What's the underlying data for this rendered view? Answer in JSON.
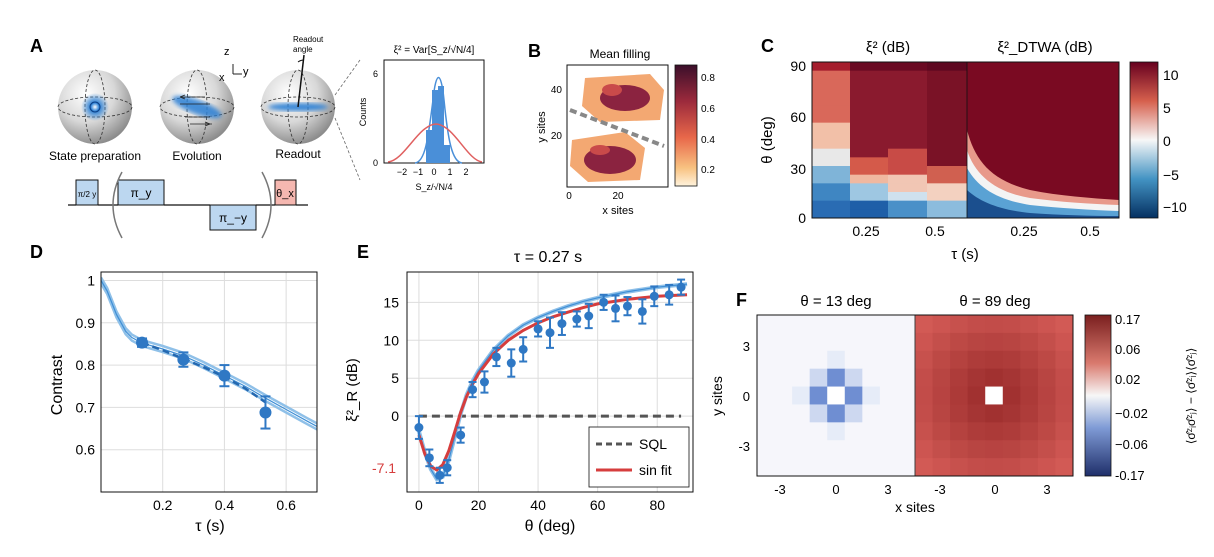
{
  "panels": {
    "A": {
      "letter": "A",
      "sphere_labels": [
        "State preparation",
        "Evolution",
        "Readout"
      ],
      "axis_z": "z",
      "axis_x": "x",
      "axis_y": "y",
      "readout_angle_label": [
        "Readout",
        "angle"
      ],
      "hist_title": "ξ² = Var[S_z/√N/4]",
      "hist_ylabel": "Counts",
      "hist_xlabel": "S_z/√N/4",
      "hist_xticks": [
        "−2",
        "−1",
        "0",
        "1",
        "2"
      ],
      "hist_yticks": [
        "0",
        "6"
      ],
      "pulses": [
        "π/2 y",
        "π_y",
        "π_−y",
        "θ_x"
      ]
    },
    "B": {
      "letter": "B",
      "title": "Mean filling",
      "xlabel": "x sites",
      "ylabel": "y sites",
      "xticks": [
        "0",
        "20"
      ],
      "yticks": [
        "20",
        "40"
      ],
      "cbar_ticks": [
        "0.8",
        "0.6",
        "0.4",
        "0.2"
      ]
    },
    "C": {
      "letter": "C",
      "title_left": "ξ² (dB)",
      "title_right": "ξ²_DTWA (dB)",
      "ylabel": "θ (deg)",
      "xlabel": "τ (s)",
      "yticks": [
        "90",
        "60",
        "30",
        "0"
      ],
      "xticks": [
        "0.25",
        "0.5",
        "0.25",
        "0.5"
      ],
      "cbar_ticks": [
        "10",
        "5",
        "0",
        "−5",
        "−10"
      ]
    },
    "F": {
      "letter": "F",
      "title_left": "θ = 13 deg",
      "title_right": "θ = 89 deg",
      "xlabel": "x sites",
      "ylabel": "y sites",
      "xticks": [
        "-3",
        "0",
        "3",
        "-3",
        "0",
        "3"
      ],
      "yticks": [
        "3",
        "0",
        "-3"
      ],
      "cbar_ticks": [
        "0.17",
        "0.06",
        "0.02",
        "−0.02",
        "−0.06",
        "-0.17"
      ],
      "cbar_label": "⟨σ̂ᶻᵢσ̂ᶻⱼ⟩ − ⟨σ̂ᶻᵢ⟩⟨σ̂ᶻⱼ⟩"
    }
  },
  "chart_data": [
    {
      "id": "D",
      "letter": "D",
      "type": "line",
      "title": "",
      "xlabel": "τ (s)",
      "ylabel": "Contrast",
      "xlim": [
        0,
        0.7
      ],
      "ylim": [
        0.5,
        1.02
      ],
      "xticks": [
        "0.2",
        "0.4",
        "0.6"
      ],
      "yticks": [
        "1",
        "0.9",
        "0.8",
        "0.7",
        "0.6"
      ],
      "series": [
        {
          "name": "",
          "style": "points",
          "x": [
            0.133,
            0.267,
            0.4,
            0.533
          ],
          "y": [
            0.853,
            0.813,
            0.775,
            0.688
          ],
          "yerr": [
            0.01,
            0.017,
            0.025,
            0.038
          ]
        },
        {
          "name": "",
          "style": "dashed-fit",
          "x": [
            0.133,
            0.2,
            0.267,
            0.333,
            0.4,
            0.467,
            0.533
          ],
          "y": [
            0.853,
            0.835,
            0.815,
            0.795,
            0.772,
            0.745,
            0.712
          ]
        },
        {
          "name": "",
          "style": "theory-band",
          "x": [
            0.0,
            0.02,
            0.05,
            0.08,
            0.1,
            0.133,
            0.2,
            0.267,
            0.333,
            0.4,
            0.467,
            0.533,
            0.6,
            0.667,
            0.7
          ],
          "y": [
            1.0,
            0.975,
            0.92,
            0.88,
            0.865,
            0.852,
            0.838,
            0.822,
            0.8,
            0.775,
            0.75,
            0.722,
            0.695,
            0.668,
            0.655
          ]
        }
      ]
    },
    {
      "id": "E",
      "letter": "E",
      "type": "scatter",
      "title": "τ = 0.27 s",
      "xlabel": "θ (deg)",
      "ylabel": "ξ²_R (dB)",
      "xlim": [
        -4,
        92
      ],
      "ylim": [
        -10,
        19
      ],
      "xticks": [
        "0",
        "20",
        "40",
        "60",
        "80"
      ],
      "yticks": [
        "15",
        "10",
        "5",
        "0"
      ],
      "min_label": "-7.1",
      "legend": [
        "SQL",
        "sin fit"
      ],
      "series": [
        {
          "name": "data",
          "x": [
            0,
            3.5,
            7,
            9.5,
            14,
            18,
            22,
            26,
            31,
            35,
            40,
            44,
            48,
            53,
            57,
            62,
            66,
            70,
            75,
            79,
            84,
            88
          ],
          "y": [
            -1.5,
            -5.5,
            -7.8,
            -6.8,
            -2.5,
            3.5,
            4.5,
            7.8,
            7.0,
            8.8,
            11.5,
            11.0,
            12.2,
            12.8,
            13.2,
            15.0,
            14.2,
            14.5,
            13.8,
            15.8,
            16.0,
            17.0
          ],
          "yerr": [
            1.5,
            1.1,
            1.0,
            1.0,
            1.0,
            1.0,
            1.4,
            1.2,
            1.8,
            1.6,
            1.0,
            2.0,
            1.5,
            1.0,
            1.6,
            1.0,
            1.7,
            1.2,
            1.6,
            1.3,
            1.3,
            1.0
          ]
        },
        {
          "name": "SQL",
          "x": [
            0,
            88
          ],
          "y": [
            0,
            0
          ]
        },
        {
          "name": "sin fit",
          "x": [
            0,
            2,
            4,
            6,
            8,
            10,
            12,
            14,
            16,
            18,
            20,
            25,
            30,
            35,
            40,
            45,
            50,
            55,
            60,
            65,
            70,
            75,
            80,
            85,
            90
          ],
          "y": [
            -2.5,
            -5.0,
            -6.6,
            -7.1,
            -6.4,
            -4.6,
            -2.1,
            0.5,
            2.6,
            4.2,
            5.6,
            8.2,
            10.0,
            11.3,
            12.3,
            13.1,
            13.7,
            14.3,
            14.8,
            15.1,
            15.4,
            15.6,
            15.8,
            15.9,
            16.0
          ]
        },
        {
          "name": "theory",
          "x": [
            0,
            2,
            4,
            6,
            8,
            10,
            12,
            14,
            16,
            18,
            20,
            25,
            30,
            35,
            40,
            45,
            50,
            55,
            60,
            65,
            70,
            75,
            80,
            85,
            90
          ],
          "y": [
            -2.0,
            -4.8,
            -7.0,
            -8.3,
            -8.0,
            -5.8,
            -2.8,
            0.3,
            2.8,
            4.6,
            6.0,
            8.7,
            10.6,
            12.0,
            13.0,
            13.8,
            14.5,
            15.1,
            15.6,
            16.0,
            16.4,
            16.7,
            17.0,
            17.2,
            17.4
          ]
        }
      ]
    }
  ],
  "colors": {
    "blue": "#2f78c4",
    "red": "#d63d3d",
    "theory": "#6ea9dc",
    "pulse_blue": "#bcd7f0",
    "pulse_red": "#f5b7b0"
  }
}
